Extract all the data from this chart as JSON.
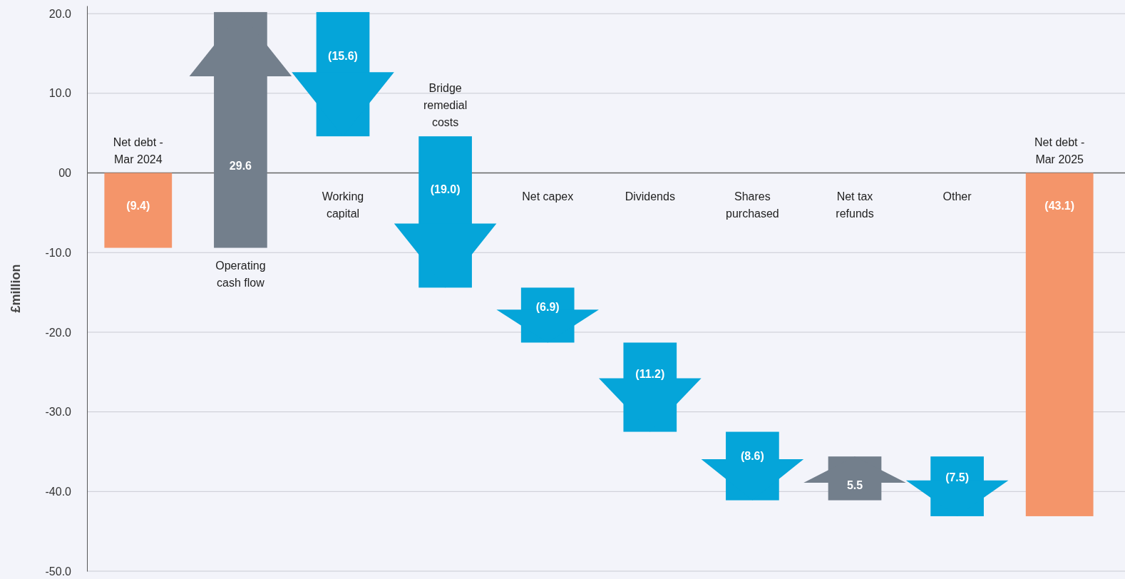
{
  "chart_data": {
    "type": "bar",
    "ylabel": "£million",
    "categories": [
      "Net debt - Mar 2024",
      "Operating cash flow",
      "Working capital",
      "Bridge remedial costs",
      "Net capex",
      "Dividends",
      "Shares purchased",
      "Net tax refunds",
      "Other",
      "Net debt - Mar 2025"
    ],
    "values": [
      -9.4,
      29.6,
      -15.6,
      -19.0,
      -6.9,
      -11.2,
      -8.6,
      5.5,
      -7.5,
      -43.1
    ],
    "base": [
      0,
      -9.4,
      20.2,
      4.6,
      -14.4,
      -21.3,
      -32.5,
      -41.1,
      -35.6,
      0
    ],
    "colors": [
      "#f4956a",
      "#737f8c",
      "#05a5d9",
      "#05a5d9",
      "#05a5d9",
      "#05a5d9",
      "#05a5d9",
      "#737f8c",
      "#05a5d9",
      "#f4956a"
    ],
    "value_labels": [
      "(9.4)",
      "29.6",
      "(15.6)",
      "(19.0)",
      "(6.9)",
      "(11.2)",
      "(8.6)",
      "5.5",
      "(7.5)",
      "(43.1)"
    ],
    "ylim": [
      -50,
      21
    ],
    "yticks": [
      {
        "value": 20,
        "label": "20.0"
      },
      {
        "value": 10,
        "label": "10.0"
      },
      {
        "value": 0,
        "label": "00"
      },
      {
        "value": -10,
        "label": "-10.0"
      },
      {
        "value": -20,
        "label": "-20.0"
      },
      {
        "value": -30,
        "label": "-30.0"
      },
      {
        "value": -40,
        "label": "-40.0"
      },
      {
        "value": -50,
        "label": "-50.0"
      }
    ],
    "grid": "y"
  }
}
